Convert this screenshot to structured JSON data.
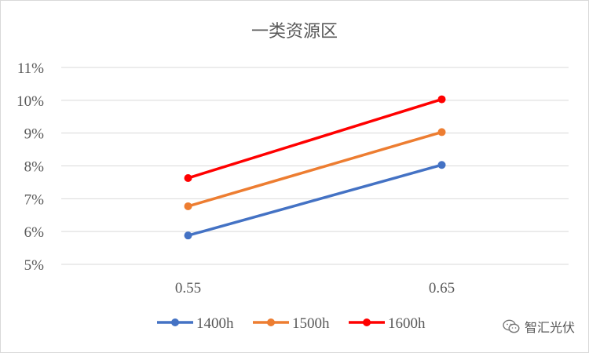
{
  "chart_data": {
    "type": "line",
    "title": "一类资源区",
    "xlabel": "",
    "ylabel": "",
    "categories": [
      "0.55",
      "0.65"
    ],
    "y_ticks": [
      "5%",
      "6%",
      "7%",
      "8%",
      "9%",
      "10%",
      "11%"
    ],
    "ylim": [
      5,
      11
    ],
    "grid": true,
    "legend_position": "bottom",
    "series": [
      {
        "name": "1400h",
        "values": [
          5.88,
          8.03
        ],
        "color": "#4472c4"
      },
      {
        "name": "1500h",
        "values": [
          6.77,
          9.03
        ],
        "color": "#ed7d31"
      },
      {
        "name": "1600h",
        "values": [
          7.63,
          10.03
        ],
        "color": "#ff0000"
      }
    ]
  },
  "watermark": {
    "text": "智汇光伏",
    "icon": "wechat-icon"
  }
}
